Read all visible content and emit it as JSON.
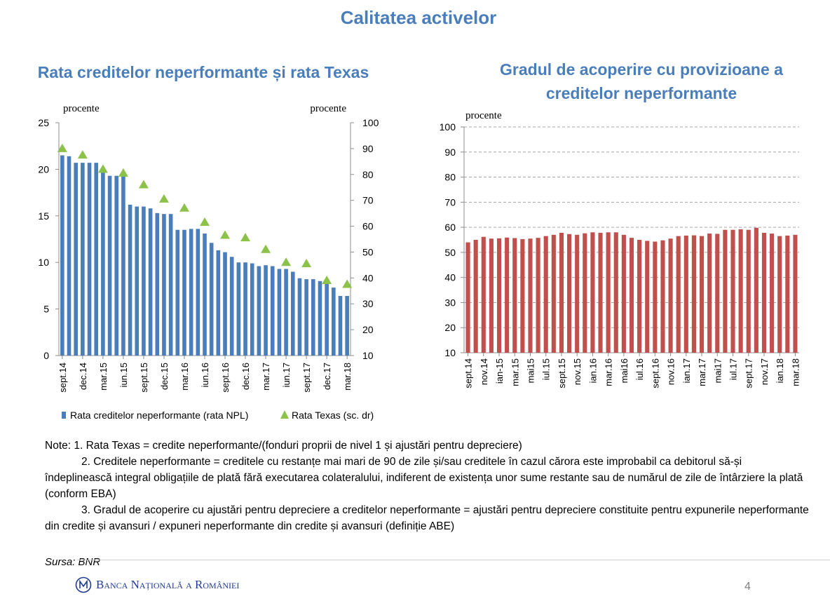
{
  "page": {
    "title": "Calitatea activelor",
    "source": "Sursa: BNR",
    "bank_name": "Banca Națională a României",
    "page_number": "4"
  },
  "notes": [
    "Note: 1. Rata Texas = credite neperformante/(fonduri proprii de nivel 1 și ajustări pentru depreciere)",
    "2. Creditele neperformante = creditele cu restanțe mai mari de 90 de zile și/sau creditele în cazul cărora este improbabil ca debitorul să-și îndeplinească integral obligațiile de plată fără executarea colateralului, indiferent de existența unor sume restante sau de numărul de zile de întârziere la plată (conform EBA)",
    "3. Gradul de acoperire cu ajustări pentru depreciere a creditelor neperformante = ajustări pentru depreciere constituite pentru expunerile neperformante din credite și avansuri / expuneri neperformante din credite și avansuri (definiție ABE)"
  ],
  "colors": {
    "title": "#4a7ebb",
    "npl_bar": "#4a7ebb",
    "texas_marker": "#8cc24a",
    "coverage_bar": "#c0504d"
  },
  "chart_data": [
    {
      "type": "bar",
      "title": "Rata creditelor neperformante și rata Texas",
      "ylabel_left": "procente",
      "ylabel_right": "procente",
      "ylim_left": [
        0,
        25
      ],
      "yticks_left": [
        0,
        5,
        10,
        15,
        20,
        25
      ],
      "ylim_right": [
        10,
        100
      ],
      "yticks_right": [
        10,
        20,
        30,
        40,
        50,
        60,
        70,
        80,
        90,
        100
      ],
      "x_tick_labels": [
        "sept.14",
        "dec.14",
        "mar.15",
        "iun.15",
        "sept.15",
        "dec.15",
        "mar.16",
        "iun.16",
        "sept.16",
        "dec.16",
        "mar.17",
        "iun.17",
        "sept.17",
        "dec.17",
        "mar.18"
      ],
      "n_months": 43,
      "grid": false,
      "legend_position": "bottom",
      "series": [
        {
          "name": "Rata creditelor neperformante (rata NPL)",
          "type": "bar",
          "axis": "left",
          "values": [
            21.5,
            21.4,
            20.7,
            20.7,
            20.7,
            20.7,
            19.9,
            19.3,
            19.3,
            19.6,
            16.2,
            16.0,
            16.0,
            15.8,
            15.3,
            15.2,
            15.2,
            13.5,
            13.5,
            13.6,
            13.6,
            13.1,
            12.1,
            11.3,
            11.1,
            10.6,
            10.0,
            10.0,
            9.9,
            9.6,
            9.7,
            9.6,
            9.3,
            9.3,
            9.0,
            8.3,
            8.2,
            8.2,
            8.0,
            7.7,
            7.3,
            6.4,
            6.4
          ]
        },
        {
          "name": "Rata Texas (sc. dr)",
          "type": "scatter",
          "axis": "right",
          "x_month_index": [
            0,
            3,
            6,
            9,
            12,
            15,
            18,
            21,
            24,
            27,
            30,
            33,
            36,
            39,
            42
          ],
          "values": [
            90,
            87.5,
            82,
            80.5,
            76,
            70.5,
            67,
            61.5,
            56.5,
            55.5,
            51,
            46,
            45.5,
            39,
            37.5
          ]
        }
      ]
    },
    {
      "type": "bar",
      "title": "Gradul de acoperire cu provizioane a creditelor neperformante",
      "ylabel": "procente",
      "ylim": [
        10,
        100
      ],
      "yticks": [
        10,
        20,
        30,
        40,
        50,
        60,
        70,
        80,
        90,
        100
      ],
      "grid": true,
      "categories": [
        "sept.14",
        "",
        "nov.14",
        "",
        "ian-15",
        "",
        "mar.15",
        "",
        "mai15",
        "",
        "iul.15",
        "",
        "sept.15",
        "",
        "nov.15",
        "",
        "ian.16",
        "",
        "mar.16",
        "",
        "mai16",
        "",
        "iul.16",
        "",
        "sept.16",
        "",
        "nov.16",
        "",
        "ian.17",
        "",
        "mar.17",
        "",
        "mai17",
        "",
        "iul.17",
        "",
        "sept.17",
        "",
        "nov.17",
        "",
        "ian.18",
        "",
        "mar.18"
      ],
      "series": [
        {
          "name": "Gradul de acoperire",
          "values": [
            54.0,
            55.0,
            56.2,
            55.5,
            55.6,
            55.9,
            55.7,
            55.3,
            55.5,
            55.8,
            56.5,
            57.0,
            57.8,
            57.3,
            57.0,
            57.6,
            58.0,
            57.8,
            58.0,
            58.0,
            57.0,
            55.8,
            55.0,
            54.6,
            54.3,
            54.8,
            55.5,
            56.5,
            56.7,
            56.8,
            56.5,
            57.5,
            57.4,
            59.0,
            59.0,
            59.2,
            59.0,
            59.8,
            57.8,
            57.5,
            56.5,
            56.7,
            57.0
          ]
        }
      ]
    }
  ]
}
